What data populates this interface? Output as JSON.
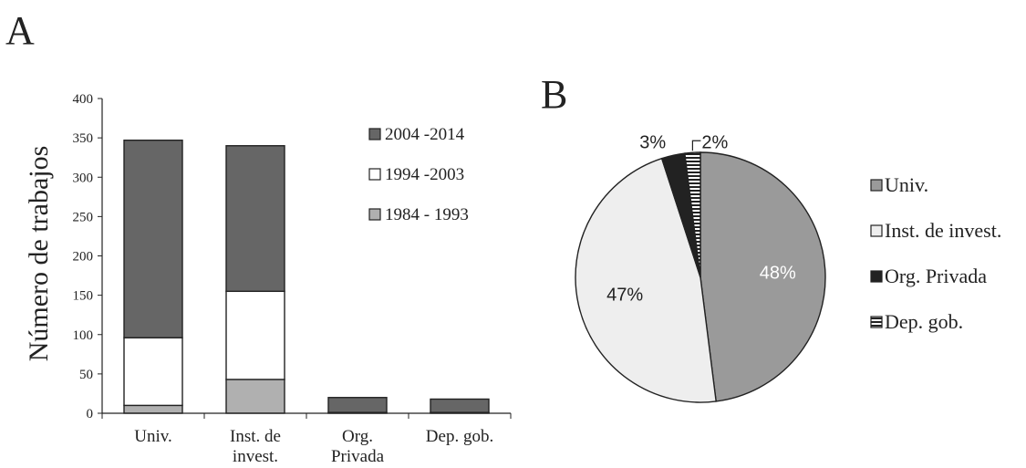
{
  "panels": {
    "a_label": "A",
    "b_label": "B"
  },
  "chart_data": [
    {
      "type": "bar",
      "stacked": true,
      "title": "",
      "xlabel": "",
      "ylabel": "Número de trabajos",
      "ylim": [
        0,
        400
      ],
      "yticks": [
        0,
        50,
        100,
        150,
        200,
        250,
        300,
        350,
        400
      ],
      "grid": false,
      "legend_position": "top-right",
      "categories": [
        {
          "lines": [
            "Univ."
          ]
        },
        {
          "lines": [
            "Inst. de",
            "invest."
          ]
        },
        {
          "lines": [
            "Org.",
            "Privada"
          ]
        },
        {
          "lines": [
            "Dep. gob."
          ]
        }
      ],
      "series": [
        {
          "name": "1984 - 1993",
          "color": "#b0b0b0",
          "values": [
            10,
            43,
            0,
            0
          ]
        },
        {
          "name": "1994 -2003",
          "color": "#ffffff",
          "values": [
            86,
            112,
            1,
            1
          ]
        },
        {
          "name": "2004 -2014",
          "color": "#666666",
          "values": [
            251,
            185,
            19,
            17
          ]
        }
      ],
      "legend_order": [
        2,
        1,
        0
      ]
    },
    {
      "type": "pie",
      "title": "",
      "legend_position": "right",
      "slices": [
        {
          "name": "Univ.",
          "value": 48,
          "label": "48%",
          "color": "#9a9a9a",
          "pattern": "none",
          "label_color": "#ffffff"
        },
        {
          "name": "Inst. de invest.",
          "value": 47,
          "label": "47%",
          "color": "#eeeeee",
          "pattern": "none",
          "label_color": "#222222"
        },
        {
          "name": "Org. Privada",
          "value": 3,
          "label": "3%",
          "color": "#222222",
          "pattern": "none",
          "label_color": "#222222"
        },
        {
          "name": "Dep. gob.",
          "value": 2,
          "label": "2%",
          "color": "#ffffff",
          "pattern": "hstripes",
          "label_color": "#222222"
        }
      ]
    }
  ]
}
